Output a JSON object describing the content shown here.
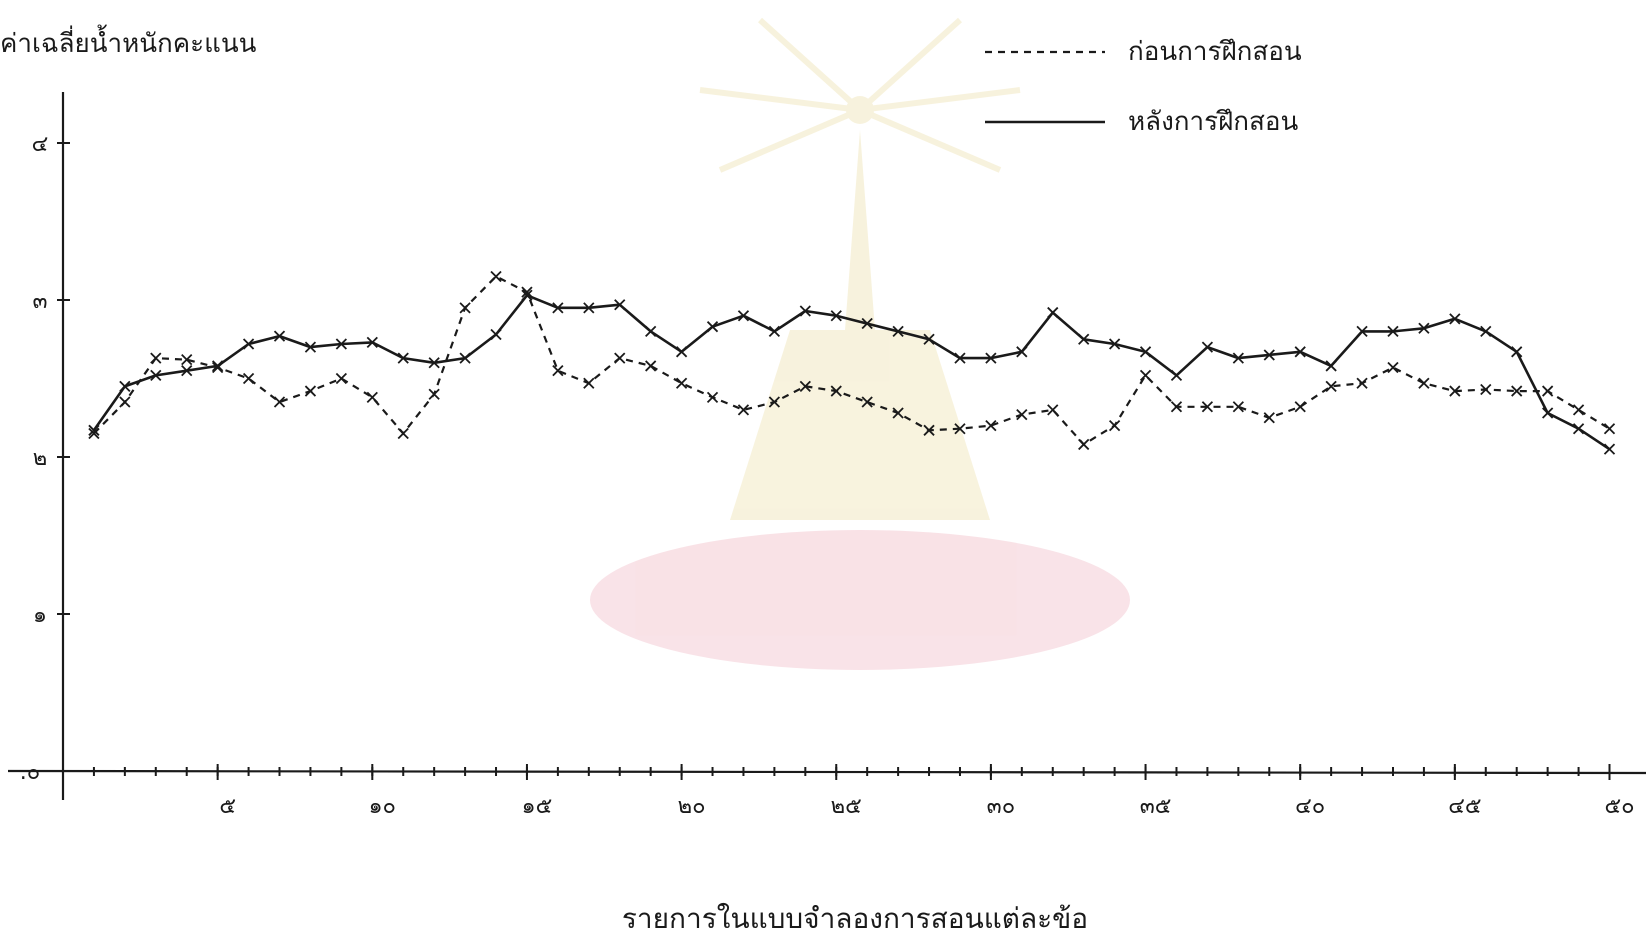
{
  "chart_data": {
    "type": "line",
    "ylabel": "ค่าเฉลี่ยน้ำหนักคะแนน",
    "xlabel": "รายการในแบบจำลองการสอนแต่ละข้อ",
    "x": [
      1,
      2,
      3,
      4,
      5,
      6,
      7,
      8,
      9,
      10,
      11,
      12,
      13,
      14,
      15,
      16,
      17,
      18,
      19,
      20,
      21,
      22,
      23,
      24,
      25,
      26,
      27,
      28,
      29,
      30,
      31,
      32,
      33,
      34,
      35,
      36,
      37,
      38,
      39,
      40,
      41,
      42,
      43,
      44,
      45,
      46,
      47,
      48,
      49,
      50
    ],
    "x_tick_values": [
      5,
      10,
      15,
      20,
      25,
      30,
      35,
      40,
      45,
      50
    ],
    "x_tick_labels": [
      "๕",
      "๑๐",
      "๑๕",
      "๒๐",
      "๒๕",
      "๓๐",
      "๓๕",
      "๔๐",
      "๔๕",
      "๕๐"
    ],
    "y_tick_values": [
      0,
      1,
      2,
      3,
      4
    ],
    "y_tick_labels": [
      ".๐",
      "๑",
      "๒",
      "๓",
      "๔"
    ],
    "ylim": [
      0,
      4.3
    ],
    "xlim": [
      0,
      51
    ],
    "grid": false,
    "legend_position": "top-right",
    "series": [
      {
        "name": "ก่อนการฝึกสอน",
        "style": "dashed",
        "values": [
          2.15,
          2.35,
          2.63,
          2.62,
          2.57,
          2.5,
          2.35,
          2.42,
          2.5,
          2.38,
          2.15,
          2.4,
          2.95,
          3.15,
          3.05,
          2.55,
          2.47,
          2.63,
          2.58,
          2.47,
          2.38,
          2.3,
          2.35,
          2.45,
          2.42,
          2.35,
          2.28,
          2.17,
          2.18,
          2.2,
          2.27,
          2.3,
          2.08,
          2.2,
          2.52,
          2.32,
          2.32,
          2.32,
          2.25,
          2.32,
          2.45,
          2.47,
          2.57,
          2.47,
          2.42,
          2.43,
          2.42,
          2.42,
          2.3,
          2.18
        ]
      },
      {
        "name": "หลังการฝึกสอน",
        "style": "solid",
        "values": [
          2.17,
          2.45,
          2.52,
          2.55,
          2.58,
          2.72,
          2.77,
          2.7,
          2.72,
          2.73,
          2.63,
          2.6,
          2.63,
          2.78,
          3.03,
          2.95,
          2.95,
          2.97,
          2.8,
          2.67,
          2.83,
          2.9,
          2.8,
          2.93,
          2.9,
          2.85,
          2.8,
          2.75,
          2.63,
          2.63,
          2.67,
          2.92,
          2.75,
          2.72,
          2.67,
          2.52,
          2.7,
          2.63,
          2.65,
          2.67,
          2.58,
          2.8,
          2.8,
          2.82,
          2.88,
          2.8,
          2.67,
          2.28,
          2.18,
          2.05
        ]
      }
    ]
  }
}
